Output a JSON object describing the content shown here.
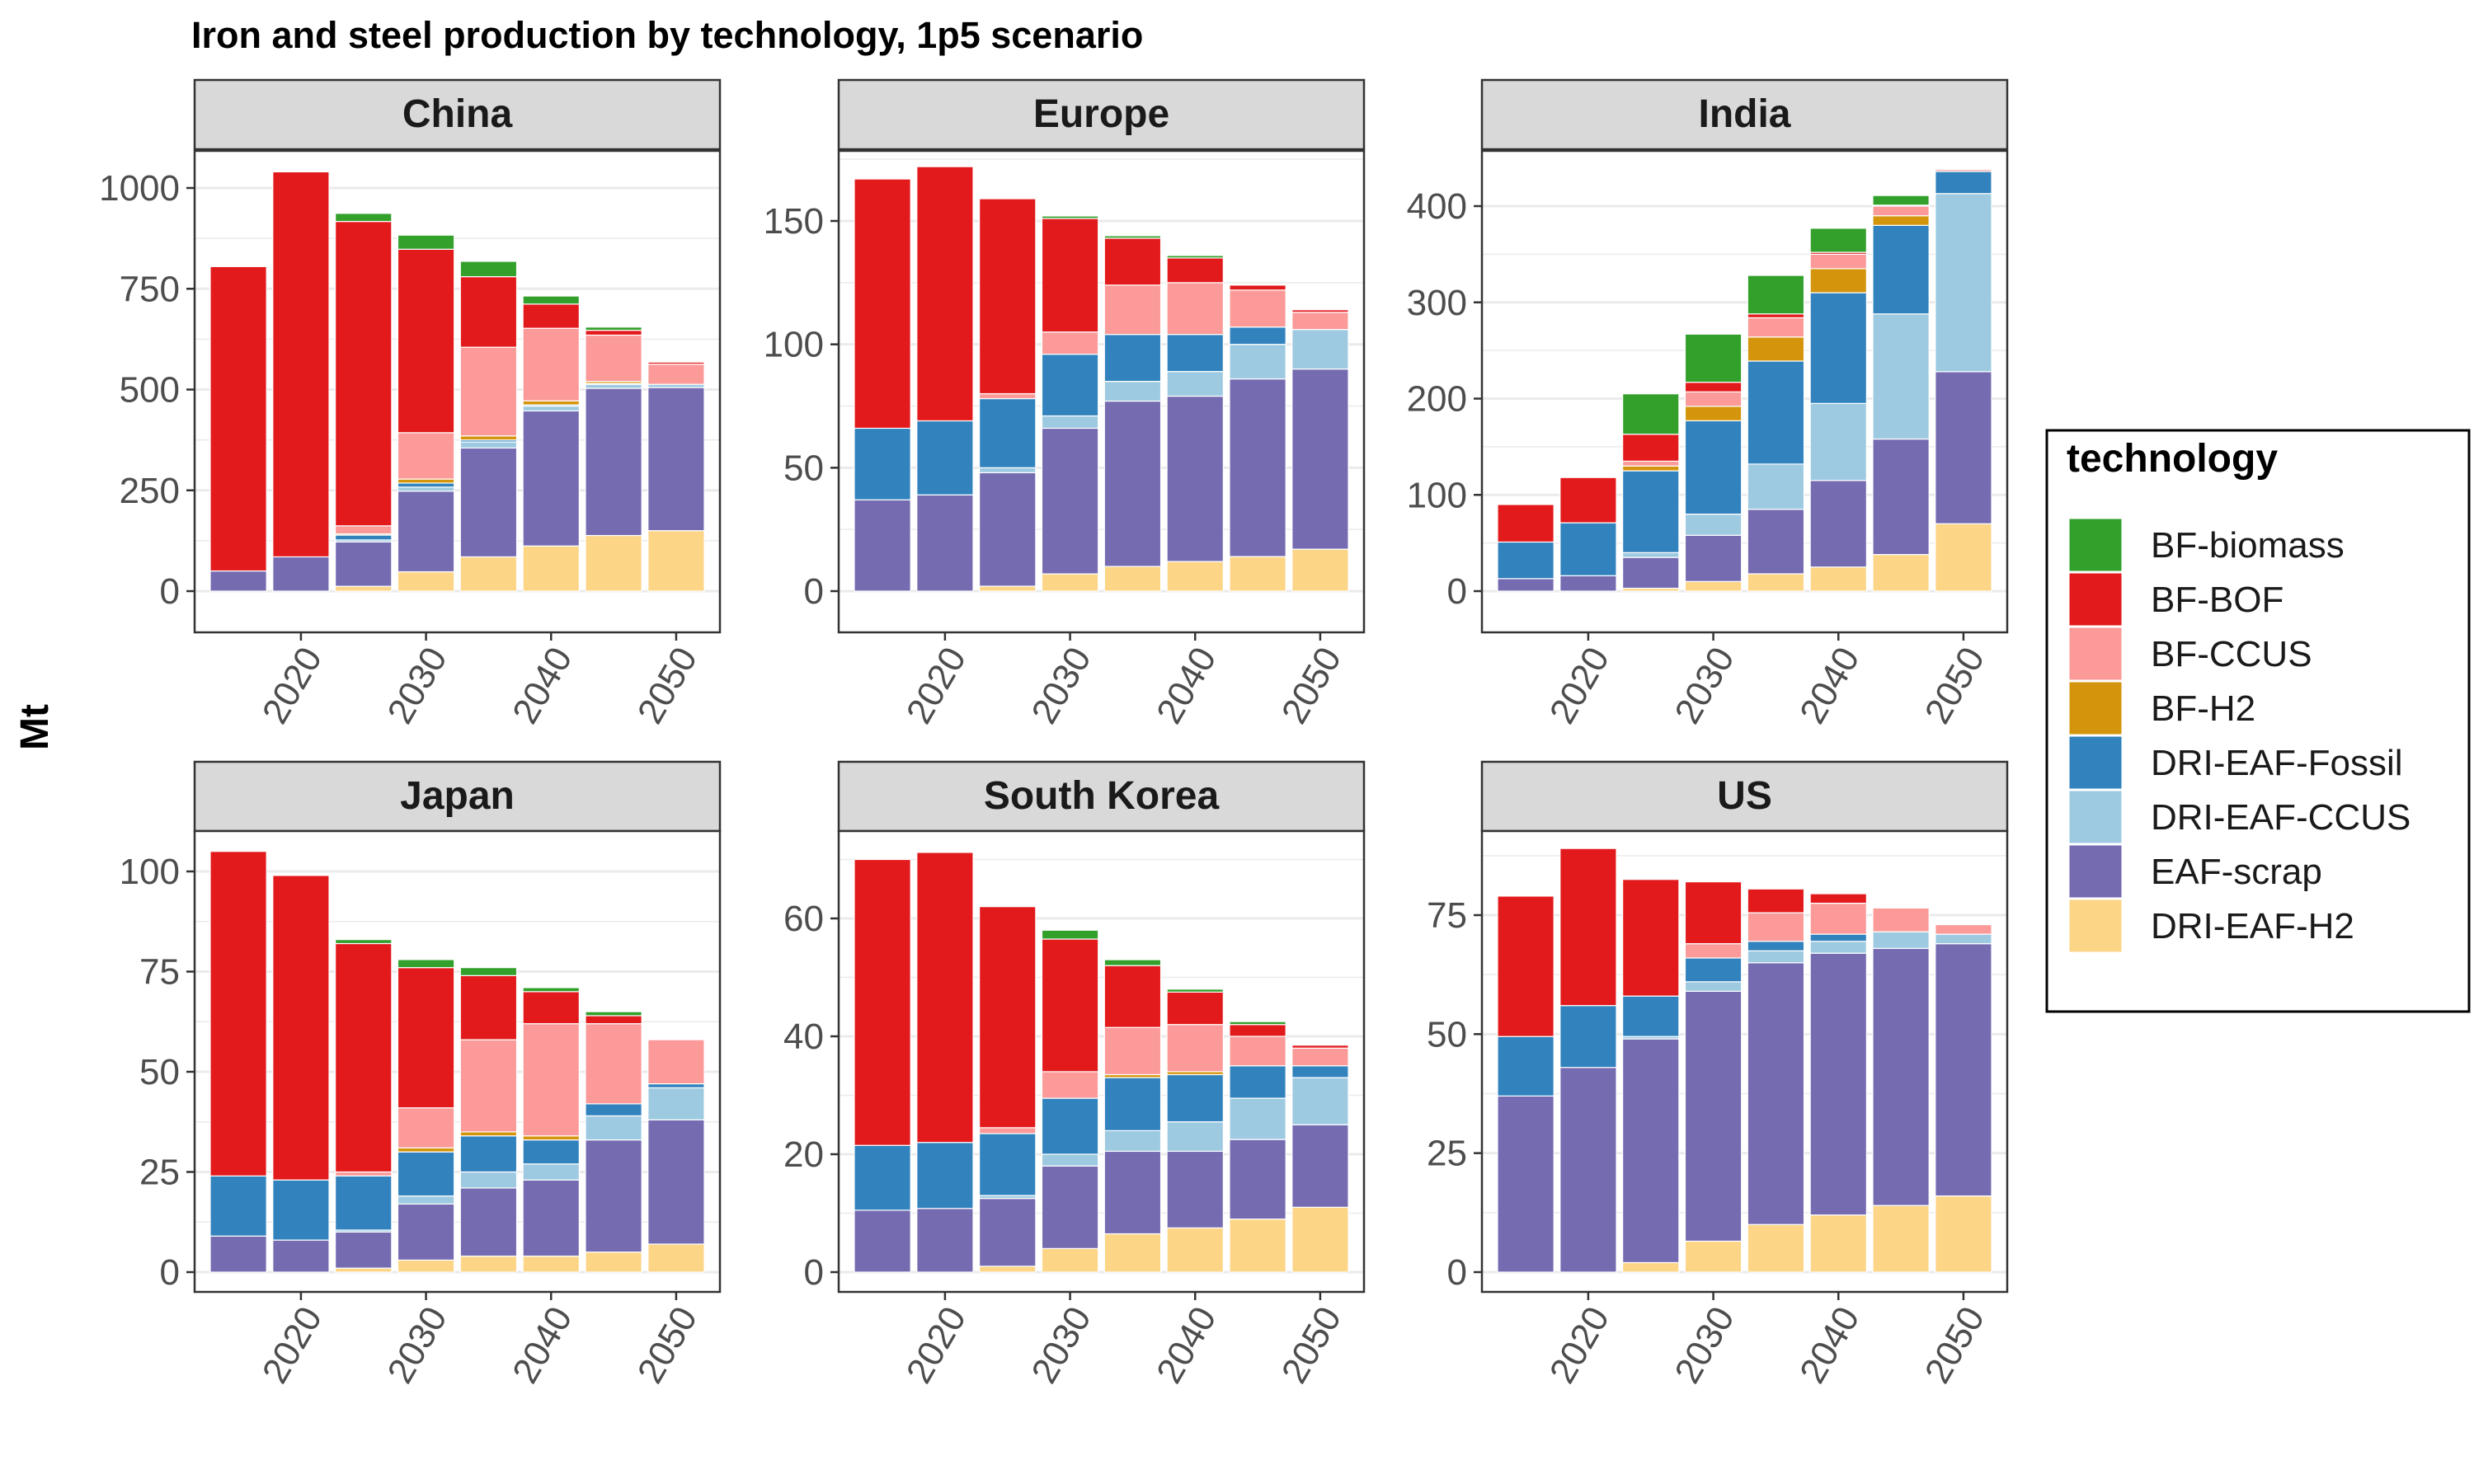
{
  "title": "Iron and steel production by technology, 1p5 scenario",
  "y_axis_label": "Mt",
  "legend": {
    "title": "technology",
    "items": [
      {
        "name": "BF-biomass",
        "color": "#33a02c"
      },
      {
        "name": "BF-BOF",
        "color": "#e31a1c"
      },
      {
        "name": "BF-CCUS",
        "color": "#fb9a99"
      },
      {
        "name": "BF-H2",
        "color": "#d4950d"
      },
      {
        "name": "DRI-EAF-Fossil",
        "color": "#3182bd"
      },
      {
        "name": "DRI-EAF-CCUS",
        "color": "#9ecae1"
      },
      {
        "name": "EAF-scrap",
        "color": "#756bb1"
      },
      {
        "name": "DRI-EAF-H2",
        "color": "#fdd587"
      }
    ]
  },
  "chart_data": {
    "type": "bar",
    "stacked": true,
    "facet_by": "region",
    "x": [
      2015,
      2020,
      2025,
      2030,
      2035,
      2040,
      2045,
      2050
    ],
    "x_tick_labels": [
      "2020",
      "2030",
      "2040",
      "2050"
    ],
    "stack_order": [
      "DRI-EAF-H2",
      "EAF-scrap",
      "DRI-EAF-CCUS",
      "DRI-EAF-Fossil",
      "BF-H2",
      "BF-CCUS",
      "BF-BOF",
      "BF-biomass"
    ],
    "ylabel": "Mt",
    "grid": true,
    "legend_position": "right",
    "panels": [
      {
        "region": "China",
        "ylim": [
          0,
          1100
        ],
        "y_ticks": [
          0,
          250,
          500,
          750,
          1000
        ],
        "series": [
          {
            "name": "DRI-EAF-H2",
            "values": [
              0,
              0,
              12,
              48,
              85,
              112,
              138,
              150
            ]
          },
          {
            "name": "EAF-scrap",
            "values": [
              50,
              85,
              110,
              200,
              270,
              335,
              365,
              355
            ]
          },
          {
            "name": "DRI-EAF-CCUS",
            "values": [
              0,
              0,
              5,
              10,
              15,
              12,
              10,
              8
            ]
          },
          {
            "name": "DRI-EAF-Fossil",
            "values": [
              0,
              0,
              12,
              10,
              5,
              3,
              2,
              0
            ]
          },
          {
            "name": "BF-H2",
            "values": [
              0,
              0,
              3,
              10,
              10,
              10,
              5,
              0
            ]
          },
          {
            "name": "BF-CCUS",
            "values": [
              0,
              0,
              20,
              115,
              220,
              180,
              115,
              50
            ]
          },
          {
            "name": "BF-BOF",
            "values": [
              755,
              955,
              755,
              455,
              175,
              60,
              12,
              5
            ]
          },
          {
            "name": "BF-biomass",
            "values": [
              0,
              0,
              20,
              35,
              38,
              20,
              8,
              0
            ]
          }
        ]
      },
      {
        "region": "Europe",
        "ylim": [
          0,
          180
        ],
        "y_ticks": [
          0,
          50,
          100,
          150
        ],
        "series": [
          {
            "name": "DRI-EAF-H2",
            "values": [
              0,
              0,
              2,
              7,
              10,
              12,
              14,
              17
            ]
          },
          {
            "name": "EAF-scrap",
            "values": [
              37,
              39,
              46,
              59,
              67,
              67,
              72,
              73
            ]
          },
          {
            "name": "DRI-EAF-CCUS",
            "values": [
              0,
              0,
              2,
              5,
              8,
              10,
              14,
              16
            ]
          },
          {
            "name": "DRI-EAF-Fossil",
            "values": [
              29,
              30,
              28,
              25,
              19,
              15,
              7,
              0
            ]
          },
          {
            "name": "BF-H2",
            "values": [
              0,
              0,
              0,
              0,
              0,
              0,
              0,
              0
            ]
          },
          {
            "name": "BF-CCUS",
            "values": [
              0,
              0,
              2,
              9,
              20,
              21,
              15,
              7
            ]
          },
          {
            "name": "BF-BOF",
            "values": [
              101,
              103,
              79,
              46,
              19,
              10,
              2,
              1
            ]
          },
          {
            "name": "BF-biomass",
            "values": [
              0,
              0,
              0,
              1,
              1,
              1,
              0,
              0
            ]
          }
        ]
      },
      {
        "region": "India",
        "ylim": [
          0,
          440
        ],
        "y_ticks": [
          0,
          100,
          200,
          300,
          400
        ],
        "series": [
          {
            "name": "DRI-EAF-H2",
            "values": [
              0,
              0,
              3,
              10,
              18,
              25,
              38,
              70
            ]
          },
          {
            "name": "EAF-scrap",
            "values": [
              13,
              16,
              32,
              48,
              67,
              90,
              120,
              158
            ]
          },
          {
            "name": "DRI-EAF-CCUS",
            "values": [
              0,
              0,
              5,
              22,
              47,
              80,
              130,
              185
            ]
          },
          {
            "name": "DRI-EAF-Fossil",
            "values": [
              38,
              55,
              85,
              97,
              107,
              115,
              92,
              23
            ]
          },
          {
            "name": "BF-H2",
            "values": [
              0,
              0,
              5,
              15,
              25,
              25,
              10,
              0
            ]
          },
          {
            "name": "BF-CCUS",
            "values": [
              0,
              0,
              5,
              15,
              20,
              15,
              10,
              2
            ]
          },
          {
            "name": "BF-BOF",
            "values": [
              39,
              47,
              28,
              10,
              4,
              2,
              1,
              0
            ]
          },
          {
            "name": "BF-biomass",
            "values": [
              0,
              0,
              42,
              50,
              40,
              25,
              10,
              0
            ]
          }
        ]
      },
      {
        "region": "Japan",
        "ylim": [
          0,
          110
        ],
        "y_ticks": [
          0,
          25,
          50,
          75,
          100
        ],
        "series": [
          {
            "name": "DRI-EAF-H2",
            "values": [
              0,
              0,
              1,
              3,
              4,
              4,
              5,
              7
            ]
          },
          {
            "name": "EAF-scrap",
            "values": [
              9,
              8,
              9,
              14,
              17,
              19,
              28,
              31
            ]
          },
          {
            "name": "DRI-EAF-CCUS",
            "values": [
              0,
              0,
              0.5,
              2,
              4,
              4,
              6,
              8
            ]
          },
          {
            "name": "DRI-EAF-Fossil",
            "values": [
              15,
              15,
              13.5,
              11,
              9,
              6,
              3,
              1
            ]
          },
          {
            "name": "BF-H2",
            "values": [
              0,
              0,
              0,
              1,
              1,
              1,
              0,
              0
            ]
          },
          {
            "name": "BF-CCUS",
            "values": [
              0,
              0,
              1,
              10,
              23,
              28,
              20,
              11
            ]
          },
          {
            "name": "BF-BOF",
            "values": [
              81,
              76,
              57,
              35,
              16,
              8,
              2,
              0
            ]
          },
          {
            "name": "BF-biomass",
            "values": [
              0,
              0,
              1,
              2,
              2,
              1,
              1,
              0
            ]
          }
        ]
      },
      {
        "region": "South Korea",
        "ylim": [
          0,
          75
        ],
        "y_ticks": [
          0,
          20,
          40,
          60
        ],
        "series": [
          {
            "name": "DRI-EAF-H2",
            "values": [
              0,
              0,
              1,
              4,
              6.5,
              7.5,
              9,
              11
            ]
          },
          {
            "name": "EAF-scrap",
            "values": [
              10.5,
              10.8,
              11.5,
              14,
              14,
              13,
              13.5,
              14
            ]
          },
          {
            "name": "DRI-EAF-CCUS",
            "values": [
              0,
              0,
              0.5,
              2,
              3.5,
              5,
              7,
              8
            ]
          },
          {
            "name": "DRI-EAF-Fossil",
            "values": [
              11,
              11.2,
              10.5,
              9.5,
              9,
              8,
              5.5,
              2
            ]
          },
          {
            "name": "BF-H2",
            "values": [
              0,
              0,
              0,
              0,
              0.5,
              0.5,
              0,
              0
            ]
          },
          {
            "name": "BF-CCUS",
            "values": [
              0,
              0,
              1,
              4.5,
              8,
              8,
              5,
              3
            ]
          },
          {
            "name": "BF-BOF",
            "values": [
              48.5,
              49.2,
              37.5,
              22.5,
              10.5,
              5.5,
              2,
              0.5
            ]
          },
          {
            "name": "BF-biomass",
            "values": [
              0,
              0,
              0,
              1.5,
              1,
              0.5,
              0.5,
              0
            ]
          }
        ]
      },
      {
        "region": "US",
        "ylim": [
          0,
          95
        ],
        "y_ticks": [
          0,
          25,
          50,
          75
        ],
        "series": [
          {
            "name": "DRI-EAF-H2",
            "values": [
              0,
              0,
              2,
              6.5,
              10,
              12,
              14,
              16
            ]
          },
          {
            "name": "EAF-scrap",
            "values": [
              37,
              43,
              47,
              52.5,
              55,
              55,
              54,
              53
            ]
          },
          {
            "name": "DRI-EAF-CCUS",
            "values": [
              0,
              0,
              0.5,
              2,
              2.5,
              2.5,
              3.5,
              2
            ]
          },
          {
            "name": "DRI-EAF-Fossil",
            "values": [
              12.5,
              13,
              8.5,
              5,
              2,
              1.5,
              0,
              0
            ]
          },
          {
            "name": "BF-H2",
            "values": [
              0,
              0,
              0,
              0,
              0,
              0,
              0,
              0
            ]
          },
          {
            "name": "BF-CCUS",
            "values": [
              0,
              0,
              0,
              3,
              6,
              6.5,
              5,
              2
            ]
          },
          {
            "name": "BF-BOF",
            "values": [
              29.5,
              33,
              24.5,
              13,
              5,
              2,
              0,
              0
            ]
          },
          {
            "name": "BF-biomass",
            "values": [
              0,
              0,
              0,
              0,
              0,
              0,
              0,
              0
            ]
          }
        ]
      }
    ]
  }
}
